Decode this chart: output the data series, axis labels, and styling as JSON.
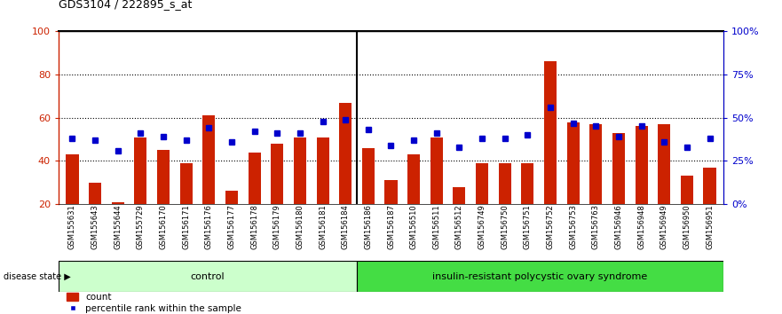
{
  "title": "GDS3104 / 222895_s_at",
  "samples": [
    "GSM155631",
    "GSM155643",
    "GSM155644",
    "GSM155729",
    "GSM156170",
    "GSM156171",
    "GSM156176",
    "GSM156177",
    "GSM156178",
    "GSM156179",
    "GSM156180",
    "GSM156181",
    "GSM156184",
    "GSM156186",
    "GSM156187",
    "GSM156510",
    "GSM156511",
    "GSM156512",
    "GSM156749",
    "GSM156750",
    "GSM156751",
    "GSM156752",
    "GSM156753",
    "GSM156763",
    "GSM156946",
    "GSM156948",
    "GSM156949",
    "GSM156950",
    "GSM156951"
  ],
  "counts": [
    43,
    30,
    21,
    51,
    45,
    39,
    61,
    26,
    44,
    48,
    51,
    51,
    67,
    46,
    31,
    43,
    51,
    28,
    39,
    39,
    39,
    86,
    58,
    57,
    53,
    56,
    57,
    33,
    37
  ],
  "percentiles": [
    38,
    37,
    31,
    41,
    39,
    37,
    44,
    36,
    42,
    41,
    41,
    48,
    49,
    43,
    34,
    37,
    41,
    33,
    38,
    38,
    40,
    56,
    47,
    45,
    39,
    45,
    36,
    33,
    38
  ],
  "n_control": 13,
  "n_pcos": 16,
  "control_label": "control",
  "pcos_label": "insulin-resistant polycystic ovary syndrome",
  "disease_state_label": "disease state",
  "legend_count": "count",
  "legend_pct": "percentile rank within the sample",
  "bar_color": "#cc2200",
  "dot_color": "#0000cc",
  "control_bg": "#ccffcc",
  "pcos_bg": "#44dd44",
  "plot_bg": "#ffffff",
  "tick_area_bg": "#d8d8d8",
  "ylim_left": [
    20,
    100
  ],
  "ylim_right": [
    0,
    100
  ],
  "yticks_left": [
    20,
    40,
    60,
    80,
    100
  ],
  "ytick_labels_right": [
    "0%",
    "25%",
    "50%",
    "75%",
    "100%"
  ],
  "yticks_right": [
    0,
    25,
    50,
    75,
    100
  ],
  "grid_lines": [
    40,
    60,
    80
  ],
  "left_axis_color": "#cc2200",
  "right_axis_color": "#0000cc"
}
